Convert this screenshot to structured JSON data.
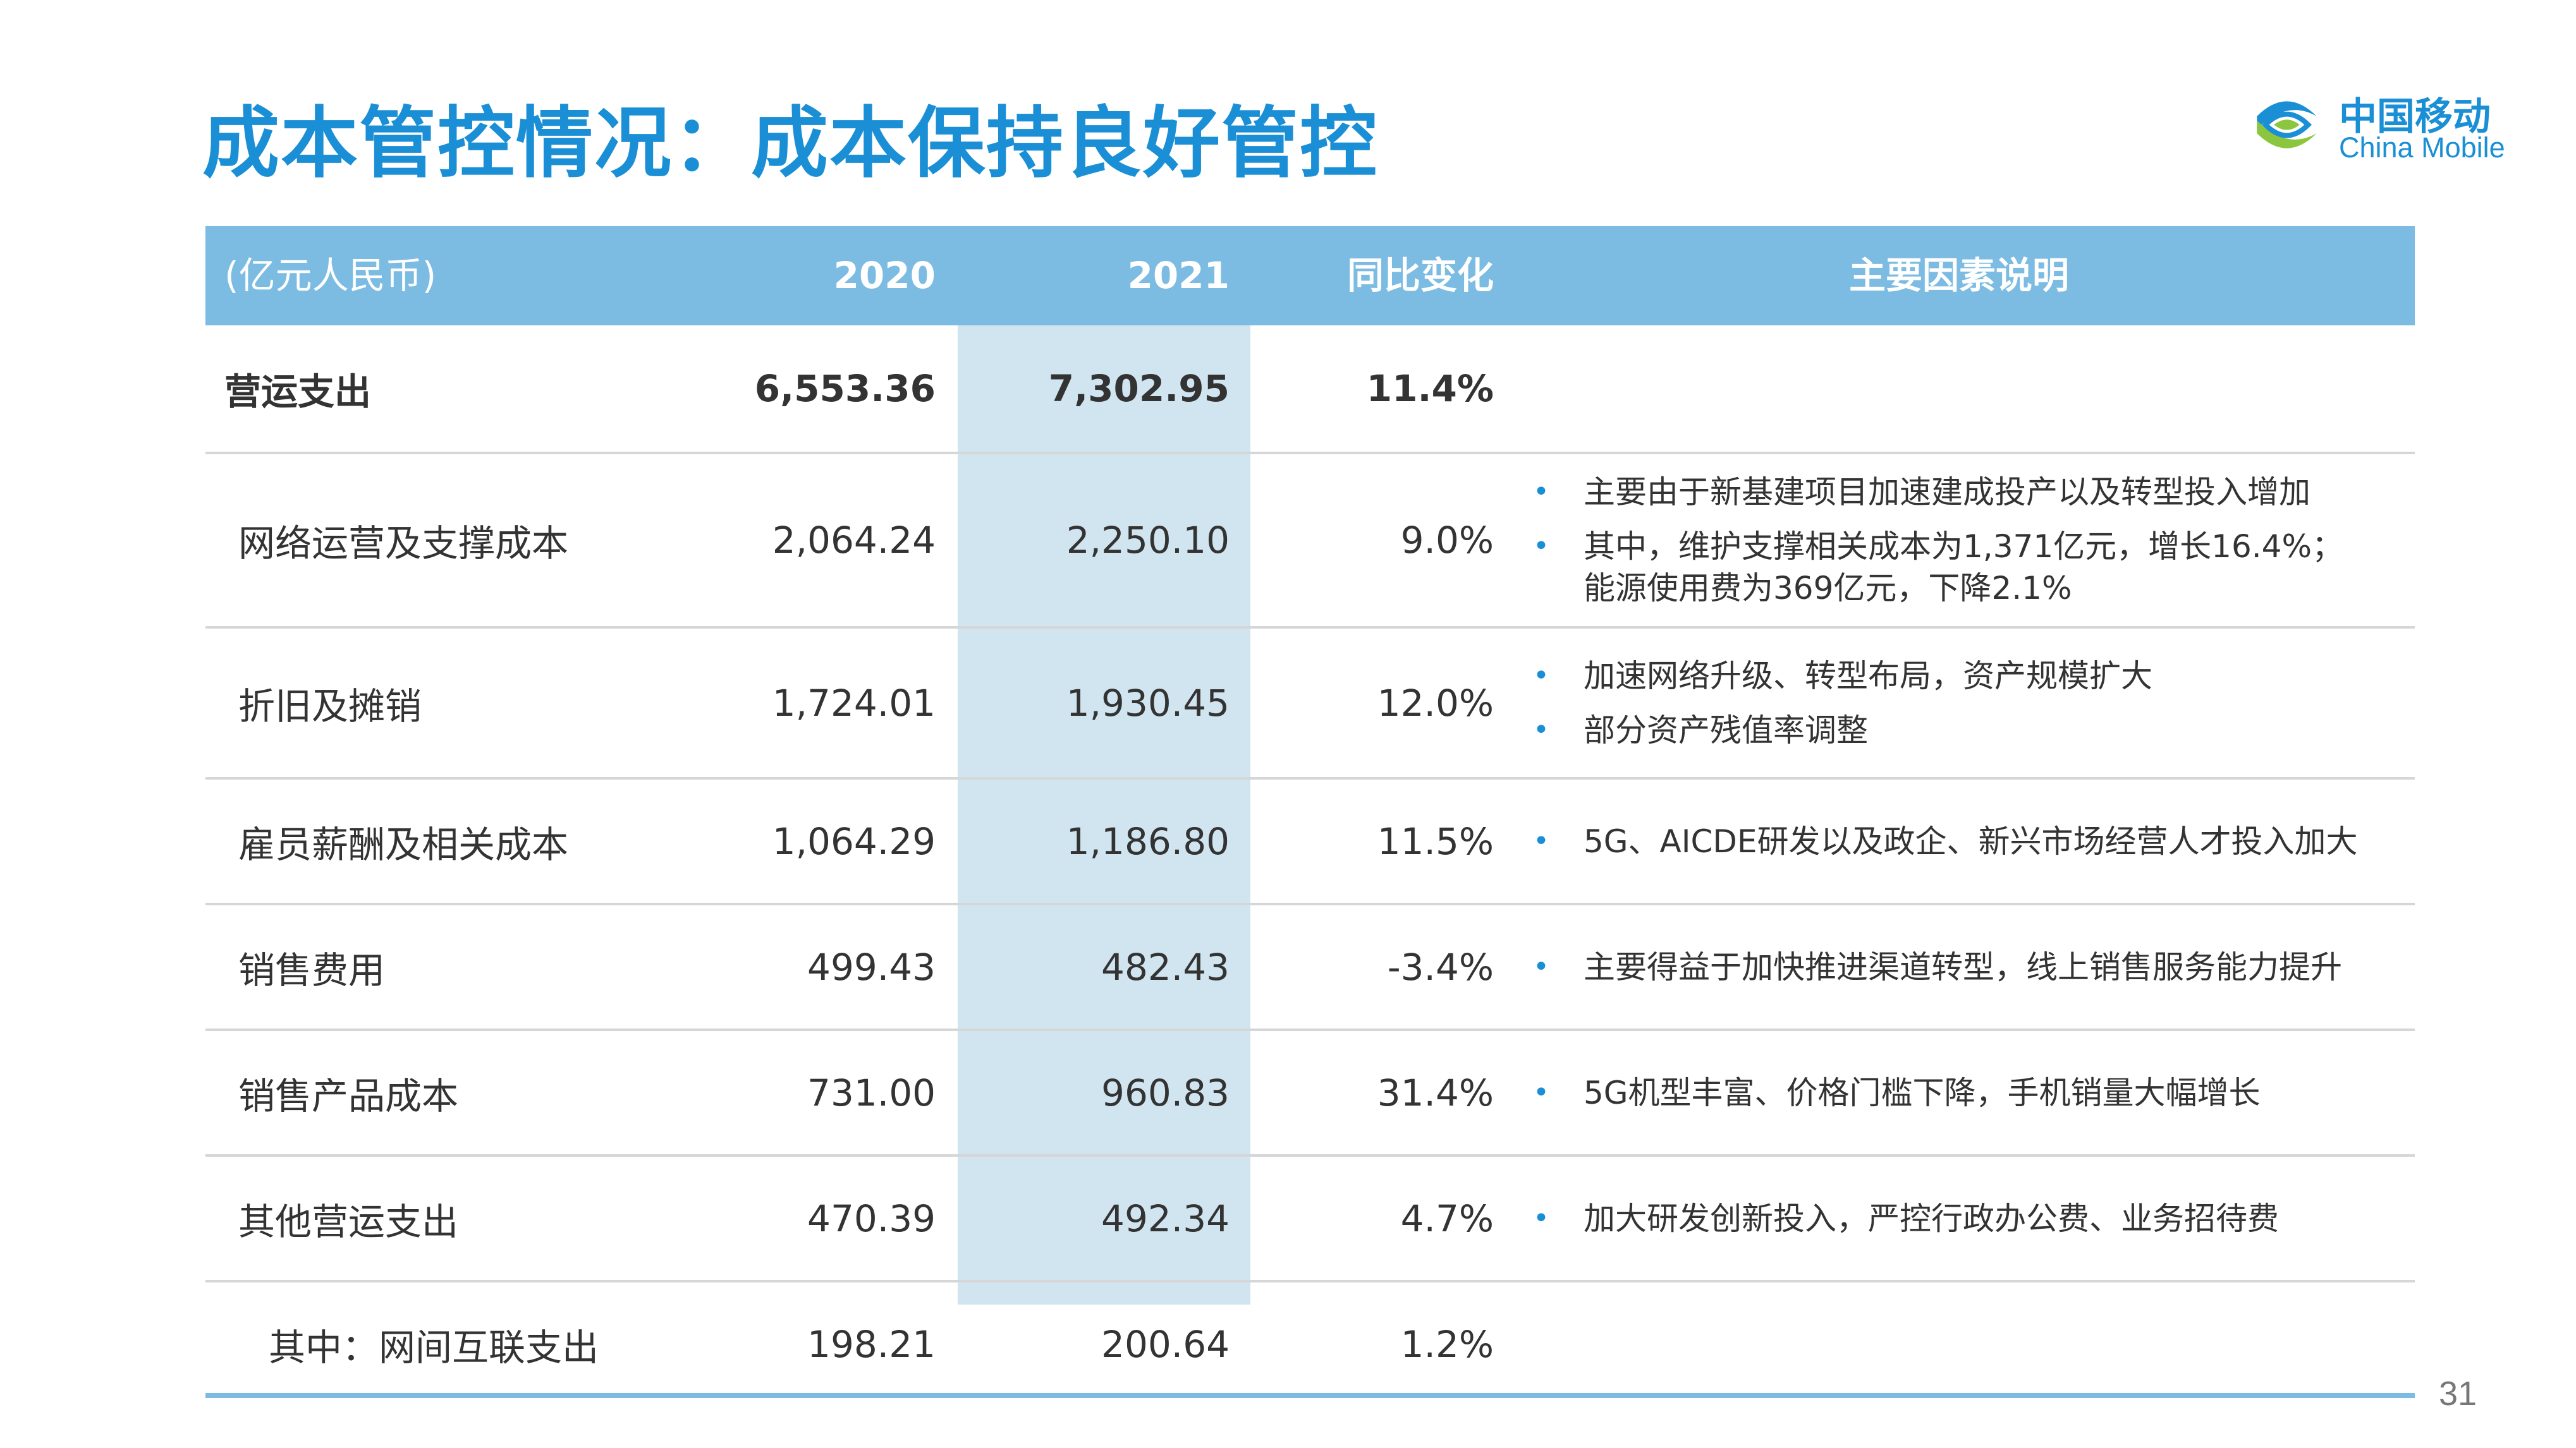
{
  "title": "成本管控情况：成本保持良好管控",
  "logo": {
    "cn": "中国移动",
    "en": "China Mobile",
    "icon": "china-mobile-logo"
  },
  "table": {
    "header": {
      "unit": "(亿元人民币)",
      "y2020": "2020",
      "y2021": "2021",
      "yoy": "同比变化",
      "notes": "主要因素说明"
    },
    "rows": [
      {
        "label": "营运支出",
        "v2020": "6,553.36",
        "v2021": "7,302.95",
        "yoy": "11.4%",
        "notes": []
      },
      {
        "label": "网络运营及支撑成本",
        "v2020": "2,064.24",
        "v2021": "2,250.10",
        "yoy": "9.0%",
        "notes": [
          "主要由于新基建项目加速建成投产以及转型投入增加",
          "其中，维护支撑相关成本为1,371亿元，增长16.4%；",
          "能源使用费为369亿元，下降2.1%"
        ]
      },
      {
        "label": "折旧及摊销",
        "v2020": "1,724.01",
        "v2021": "1,930.45",
        "yoy": "12.0%",
        "notes": [
          "加速网络升级、转型布局，资产规模扩大",
          "部分资产残值率调整"
        ]
      },
      {
        "label": "雇员薪酬及相关成本",
        "v2020": "1,064.29",
        "v2021": "1,186.80",
        "yoy": "11.5%",
        "notes": [
          "5G、AICDE研发以及政企、新兴市场经营人才投入加大"
        ]
      },
      {
        "label": "销售费用",
        "v2020": "499.43",
        "v2021": "482.43",
        "yoy": "-3.4%",
        "notes": [
          "主要得益于加快推进渠道转型，线上销售服务能力提升"
        ]
      },
      {
        "label": "销售产品成本",
        "v2020": "731.00",
        "v2021": "960.83",
        "yoy": "31.4%",
        "notes": [
          "5G机型丰富、价格门槛下降，手机销量大幅增长"
        ]
      },
      {
        "label": "其他营运支出",
        "v2020": "470.39",
        "v2021": "492.34",
        "yoy": "4.7%",
        "notes": [
          "加大研发创新投入，严控行政办公费、业务招待费"
        ]
      },
      {
        "label": "其中：网间互联支出",
        "v2020": "198.21",
        "v2021": "200.64",
        "yoy": "1.2%",
        "notes": []
      }
    ]
  },
  "bullet": "•",
  "page_number": "31",
  "colors": {
    "title": "#1a8fd6",
    "header_bg": "#7cbbe2",
    "highlight_col": "#d1e5f1",
    "bullet": "#1a8fd6"
  }
}
